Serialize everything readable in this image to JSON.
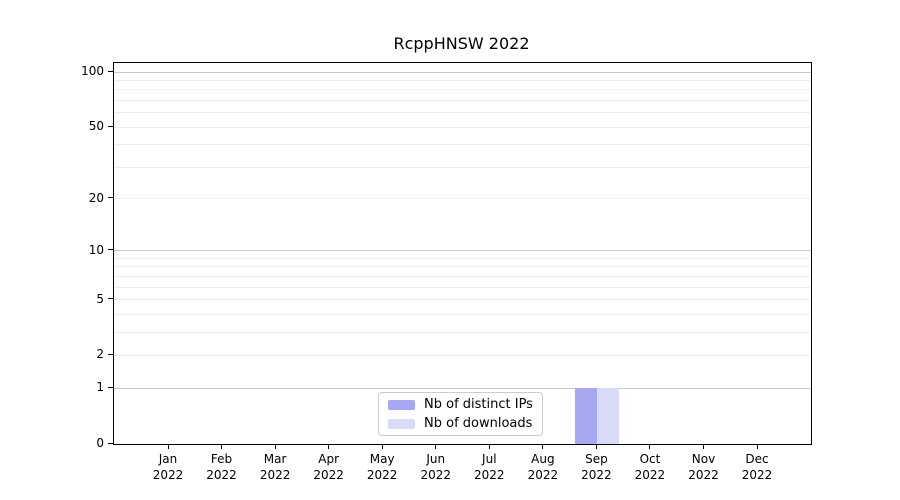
{
  "chart_data": {
    "type": "bar",
    "title": "RcppHNSW 2022",
    "categories": [
      "Jan 2022",
      "Feb 2022",
      "Mar 2022",
      "Apr 2022",
      "May 2022",
      "Jun 2022",
      "Jul 2022",
      "Aug 2022",
      "Sep 2022",
      "Oct 2022",
      "Nov 2022",
      "Dec 2022"
    ],
    "x_tick_months": [
      "Jan",
      "Feb",
      "Mar",
      "Apr",
      "May",
      "Jun",
      "Jul",
      "Aug",
      "Sep",
      "Oct",
      "Nov",
      "Dec"
    ],
    "x_tick_year": "2022",
    "series": [
      {
        "name": "Nb of distinct IPs",
        "color": "#a8a8f2",
        "values": [
          0,
          0,
          0,
          0,
          0,
          0,
          0,
          0,
          1,
          0,
          0,
          0
        ]
      },
      {
        "name": "Nb of downloads",
        "color": "#d9d9f8",
        "values": [
          0,
          0,
          0,
          0,
          0,
          0,
          0,
          0,
          1,
          0,
          0,
          0
        ]
      }
    ],
    "xlabel": "",
    "ylabel": "",
    "y_scale": "log1p",
    "ylim": [
      0,
      112
    ],
    "y_ticks": [
      0,
      1,
      2,
      5,
      10,
      20,
      50,
      100
    ],
    "y_major_gridlines": [
      1,
      10,
      100
    ],
    "y_minor_gridlines": [
      2,
      3,
      4,
      5,
      6,
      7,
      8,
      9,
      20,
      30,
      40,
      50,
      60,
      70,
      80,
      90
    ],
    "grid": "horizontal",
    "legend_position": "bottom-center"
  },
  "colors": {
    "major_grid": "#c9c9c9",
    "minor_grid": "#ededed",
    "spine": "#000000",
    "background": "#ffffff"
  }
}
